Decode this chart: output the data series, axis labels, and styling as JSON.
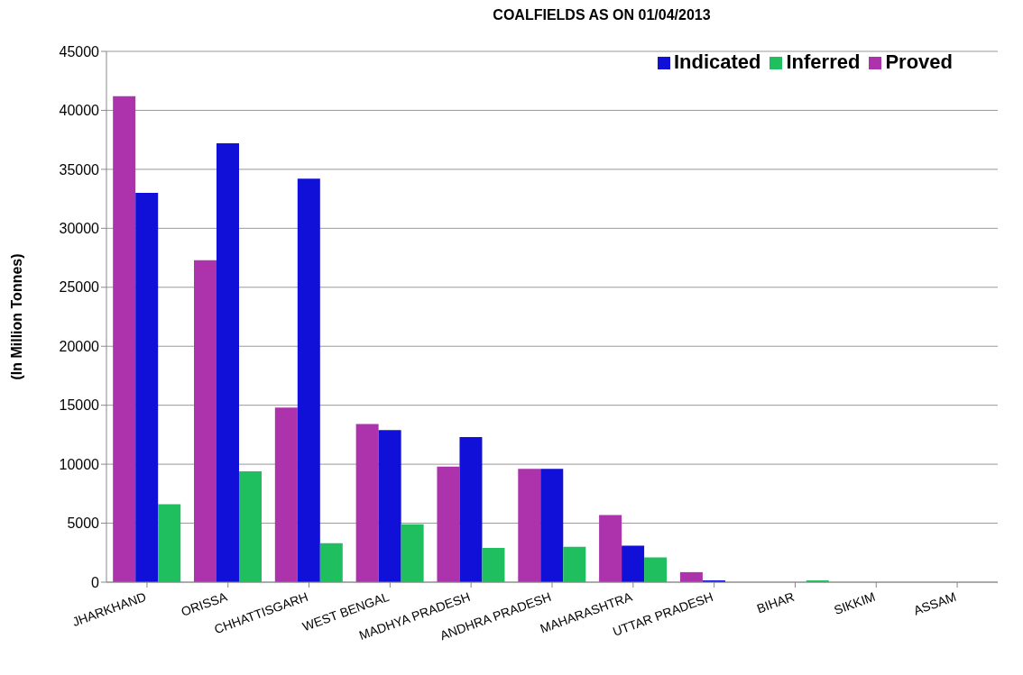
{
  "chart_data": {
    "type": "bar",
    "title": "COALFIELDS AS ON 01/04/2013",
    "ylabel": "(In Million Tonnes)",
    "categories": [
      "JHARKHAND",
      "ORISSA",
      "CHHATTISGARH",
      "WEST BENGAL",
      "MADHYA PRADESH",
      "ANDHRA PRADESH",
      "MAHARASHTRA",
      "UTTAR PRADESH",
      "BIHAR",
      "SIKKIM",
      "ASSAM"
    ],
    "series": [
      {
        "name": "Proved",
        "color": "#ad33ad",
        "values": [
          41200,
          27300,
          14800,
          13400,
          9800,
          9600,
          5700,
          850,
          0,
          0,
          0
        ]
      },
      {
        "name": "Indicated",
        "color": "#1010d8",
        "values": [
          33000,
          37200,
          34200,
          12900,
          12300,
          9600,
          3100,
          150,
          0,
          0,
          0
        ]
      },
      {
        "name": "Inferred",
        "color": "#1fbf60",
        "values": [
          6600,
          9400,
          3300,
          4900,
          2900,
          3000,
          2100,
          0,
          150,
          0,
          0
        ]
      }
    ],
    "ylim": [
      0,
      45000
    ],
    "yticks": [
      0,
      5000,
      10000,
      15000,
      20000,
      25000,
      30000,
      35000,
      40000,
      45000
    ],
    "grid": "y",
    "legend": "top right"
  }
}
